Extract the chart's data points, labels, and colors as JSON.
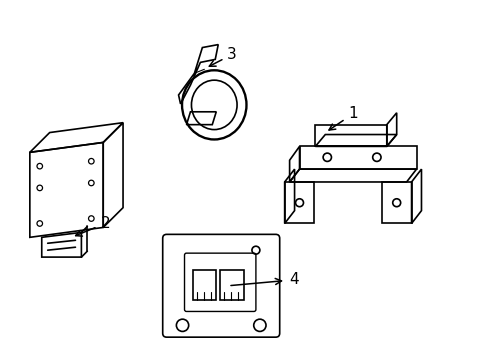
{
  "bg_color": "#ffffff",
  "line_color": "#000000",
  "lw": 1.2,
  "fig_width": 4.89,
  "fig_height": 3.6,
  "dpi": 100,
  "font_size": 11
}
